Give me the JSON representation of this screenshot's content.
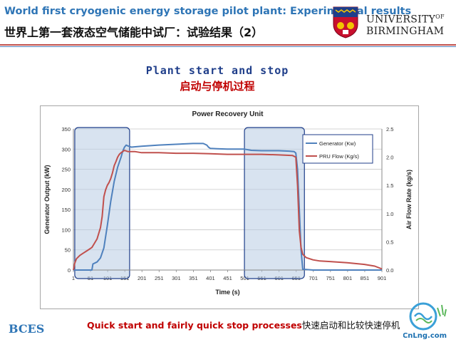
{
  "header": {
    "title_en": "World first cryogenic energy storage pilot plant: Experimental results",
    "title_zh": "世界上第一套液态空气储能中试厂：试验结果（2）",
    "university_line1": "UNIVERSITY",
    "university_of": "OF",
    "university_line2": "BIRMINGHAM"
  },
  "slide": {
    "subtitle_en": "Plant start and stop",
    "subtitle_zh": "启动与停机过程",
    "caption_en": "Quick start and fairly quick stop processes",
    "caption_zh": "快速启动和比较快速停机",
    "footer_logo": "BCES",
    "watermark": "CnLng.com"
  },
  "colors": {
    "title_blue": "#2e75b6",
    "subtitle_navy": "#1f3e8a",
    "accent_red": "#c00000",
    "generator_line": "#4f81bd",
    "flow_line": "#c0504d",
    "highlight_fill": "#b8cce4"
  },
  "chart_data": {
    "type": "line",
    "title": "Power Recovery Unit",
    "xlabel": "Time (s)",
    "ylabel": "Generator Output (kW)",
    "y2label": "Air Flow Rate (kg/s)",
    "xlim": [
      1,
      901
    ],
    "ylim": [
      0,
      350
    ],
    "y2lim": [
      0,
      2.5
    ],
    "x_ticks": [
      "1",
      "51",
      "101",
      "151",
      "201",
      "251",
      "301",
      "351",
      "401",
      "451",
      "501",
      "551",
      "601",
      "651",
      "701",
      "751",
      "801",
      "851",
      "901"
    ],
    "y_ticks": [
      "0",
      "50",
      "100",
      "150",
      "200",
      "250",
      "300",
      "350"
    ],
    "y2_ticks": [
      "0.0",
      "0.5",
      "1.0",
      "1.5",
      "2.0",
      "2.5"
    ],
    "grid": true,
    "legend_position": "top-right",
    "highlight_ranges": [
      [
        5,
        165
      ],
      [
        500,
        675
      ]
    ],
    "series": [
      {
        "name": "Generator (Kw)",
        "axis": "left",
        "x": [
          1,
          55,
          58,
          70,
          80,
          90,
          100,
          110,
          120,
          130,
          140,
          145,
          150,
          155,
          160,
          170,
          200,
          250,
          300,
          350,
          380,
          390,
          395,
          400,
          420,
          450,
          500,
          520,
          550,
          600,
          630,
          645,
          650,
          655,
          660,
          665,
          670,
          700,
          750,
          800,
          850,
          901
        ],
        "values": [
          0,
          0,
          15,
          20,
          30,
          55,
          110,
          170,
          220,
          255,
          280,
          295,
          305,
          310,
          308,
          305,
          307,
          310,
          312,
          314,
          314,
          310,
          305,
          302,
          301,
          300,
          300,
          297,
          296,
          296,
          295,
          294,
          290,
          250,
          150,
          50,
          2,
          0,
          0,
          0,
          0,
          0
        ]
      },
      {
        "name": "PRU Flow (Kg/s)",
        "axis": "right",
        "x": [
          1,
          5,
          10,
          20,
          30,
          40,
          50,
          55,
          60,
          65,
          70,
          75,
          80,
          85,
          90,
          95,
          100,
          105,
          110,
          115,
          120,
          125,
          130,
          135,
          140,
          145,
          150,
          160,
          180,
          200,
          250,
          300,
          350,
          400,
          450,
          500,
          550,
          600,
          640,
          650,
          655,
          660,
          665,
          670,
          680,
          700,
          720,
          750,
          800,
          850,
          880,
          901
        ],
        "values": [
          0.0,
          0.12,
          0.2,
          0.26,
          0.3,
          0.34,
          0.38,
          0.4,
          0.45,
          0.5,
          0.55,
          0.65,
          0.75,
          0.95,
          1.3,
          1.42,
          1.5,
          1.55,
          1.62,
          1.72,
          1.85,
          1.92,
          2.0,
          2.05,
          2.08,
          2.1,
          2.12,
          2.1,
          2.1,
          2.08,
          2.08,
          2.07,
          2.07,
          2.06,
          2.05,
          2.05,
          2.05,
          2.04,
          2.03,
          2.0,
          1.5,
          0.7,
          0.4,
          0.28,
          0.22,
          0.18,
          0.16,
          0.15,
          0.13,
          0.1,
          0.07,
          0.02
        ]
      }
    ]
  }
}
